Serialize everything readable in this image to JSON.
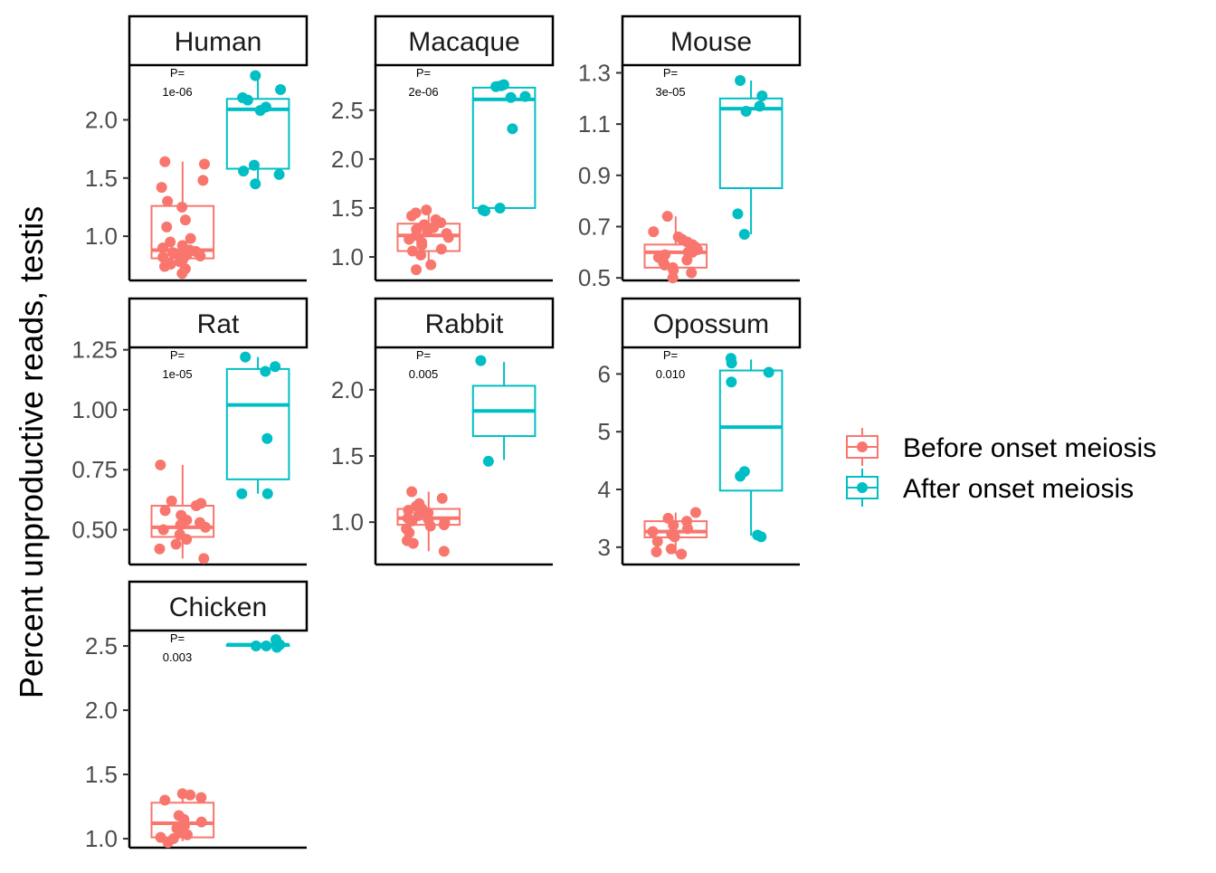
{
  "chart_data": {
    "type": "box",
    "ylabel": "Percent unproductive reads, testis",
    "legend": {
      "position": "right",
      "entries": [
        {
          "label": "Before onset meiosis",
          "color": "#F8766D"
        },
        {
          "label": "After onset meiosis",
          "color": "#00BFC4"
        }
      ]
    },
    "panels": [
      {
        "title": "Human",
        "pvalue": "1e-06",
        "ylim": [
          0.62,
          2.47
        ],
        "yticks": [
          {
            "v": 1.0,
            "label": "1.0"
          },
          {
            "v": 1.5,
            "label": "1.5"
          },
          {
            "v": 2.0,
            "label": "2.0"
          }
        ],
        "groups": [
          {
            "group": "Before onset meiosis",
            "box": {
              "whisker_low": 0.68,
              "q1": 0.81,
              "median": 0.88,
              "q3": 1.26,
              "whisker_high": 1.64
            },
            "points": [
              0.68,
              0.72,
              0.74,
              0.76,
              0.78,
              0.8,
              0.82,
              0.83,
              0.84,
              0.85,
              0.86,
              0.87,
              0.88,
              0.9,
              0.92,
              0.95,
              0.98,
              1.08,
              1.14,
              1.25,
              1.3,
              1.42,
              1.48,
              1.62,
              1.64
            ]
          },
          {
            "group": "After onset meiosis",
            "box": {
              "whisker_low": 1.45,
              "q1": 1.58,
              "median": 2.09,
              "q3": 2.18,
              "whisker_high": 2.38
            },
            "points": [
              1.45,
              1.53,
              1.56,
              1.61,
              2.08,
              2.11,
              2.17,
              2.19,
              2.26,
              2.38
            ]
          }
        ]
      },
      {
        "title": "Macaque",
        "pvalue": "2e-06",
        "ylim": [
          0.76,
          2.96
        ],
        "yticks": [
          {
            "v": 1.0,
            "label": "1.0"
          },
          {
            "v": 1.5,
            "label": "1.5"
          },
          {
            "v": 2.0,
            "label": "2.0"
          },
          {
            "v": 2.5,
            "label": "2.5"
          }
        ],
        "groups": [
          {
            "group": "Before onset meiosis",
            "box": {
              "whisker_low": 0.87,
              "q1": 1.06,
              "median": 1.22,
              "q3": 1.34,
              "whisker_high": 1.48
            },
            "points": [
              0.87,
              0.92,
              1.02,
              1.06,
              1.08,
              1.12,
              1.15,
              1.18,
              1.2,
              1.22,
              1.24,
              1.26,
              1.28,
              1.3,
              1.33,
              1.35,
              1.38,
              1.42,
              1.45,
              1.48
            ]
          },
          {
            "group": "After onset meiosis",
            "box": {
              "whisker_low": 1.48,
              "q1": 1.5,
              "median": 2.61,
              "q3": 2.73,
              "whisker_high": 2.76
            },
            "points": [
              1.47,
              1.48,
              1.5,
              2.31,
              2.63,
              2.64,
              2.74,
              2.75,
              2.76
            ]
          }
        ]
      },
      {
        "title": "Mouse",
        "pvalue": "3e-05",
        "ylim": [
          0.49,
          1.33
        ],
        "yticks": [
          {
            "v": 0.5,
            "label": "0.5"
          },
          {
            "v": 0.7,
            "label": "0.7"
          },
          {
            "v": 0.9,
            "label": "0.9"
          },
          {
            "v": 1.1,
            "label": "1.1"
          },
          {
            "v": 1.3,
            "label": "1.3"
          }
        ],
        "groups": [
          {
            "group": "Before onset meiosis",
            "box": {
              "whisker_low": 0.5,
              "q1": 0.54,
              "median": 0.6,
              "q3": 0.63,
              "whisker_high": 0.74
            },
            "points": [
              0.5,
              0.52,
              0.53,
              0.54,
              0.55,
              0.56,
              0.57,
              0.58,
              0.59,
              0.6,
              0.6,
              0.61,
              0.62,
              0.63,
              0.64,
              0.65,
              0.66,
              0.68,
              0.74
            ]
          },
          {
            "group": "After onset meiosis",
            "box": {
              "whisker_low": 0.67,
              "q1": 0.85,
              "median": 1.16,
              "q3": 1.2,
              "whisker_high": 1.27
            },
            "points": [
              0.67,
              0.75,
              1.15,
              1.17,
              1.21,
              1.27
            ]
          }
        ]
      },
      {
        "title": "Rat",
        "pvalue": "1e-05",
        "ylim": [
          0.355,
          1.26
        ],
        "yticks": [
          {
            "v": 0.5,
            "label": "0.50"
          },
          {
            "v": 0.75,
            "label": "0.75"
          },
          {
            "v": 1.0,
            "label": "1.00"
          },
          {
            "v": 1.25,
            "label": "1.25"
          }
        ],
        "groups": [
          {
            "group": "Before onset meiosis",
            "box": {
              "whisker_low": 0.38,
              "q1": 0.47,
              "median": 0.51,
              "q3": 0.6,
              "whisker_high": 0.77
            },
            "points": [
              0.38,
              0.42,
              0.44,
              0.46,
              0.48,
              0.5,
              0.51,
              0.52,
              0.53,
              0.54,
              0.56,
              0.58,
              0.6,
              0.61,
              0.62,
              0.77
            ]
          },
          {
            "group": "After onset meiosis",
            "box": {
              "whisker_low": 0.65,
              "q1": 0.71,
              "median": 1.02,
              "q3": 1.17,
              "whisker_high": 1.22
            },
            "points": [
              0.65,
              0.65,
              0.88,
              1.16,
              1.18,
              1.22
            ]
          }
        ]
      },
      {
        "title": "Rabbit",
        "pvalue": "0.005",
        "ylim": [
          0.68,
          2.32
        ],
        "yticks": [
          {
            "v": 1.0,
            "label": "1.0"
          },
          {
            "v": 1.5,
            "label": "1.5"
          },
          {
            "v": 2.0,
            "label": "2.0"
          }
        ],
        "groups": [
          {
            "group": "Before onset meiosis",
            "box": {
              "whisker_low": 0.78,
              "q1": 0.98,
              "median": 1.03,
              "q3": 1.1,
              "whisker_high": 1.23
            },
            "points": [
              0.78,
              0.84,
              0.86,
              0.92,
              0.95,
              0.97,
              0.98,
              1.0,
              1.01,
              1.02,
              1.03,
              1.05,
              1.07,
              1.09,
              1.1,
              1.12,
              1.14,
              1.18,
              1.23
            ]
          },
          {
            "group": "After onset meiosis",
            "box": {
              "whisker_low": 1.47,
              "q1": 1.65,
              "median": 1.84,
              "q3": 2.03,
              "whisker_high": 2.21
            },
            "points": [
              1.46,
              2.22
            ]
          }
        ]
      },
      {
        "title": "Opossum",
        "pvalue": "0.010",
        "ylim": [
          2.7,
          6.46
        ],
        "yticks": [
          {
            "v": 3,
            "label": "3"
          },
          {
            "v": 4,
            "label": "4"
          },
          {
            "v": 5,
            "label": "5"
          },
          {
            "v": 6,
            "label": "6"
          }
        ],
        "groups": [
          {
            "group": "Before onset meiosis",
            "box": {
              "whisker_low": 2.88,
              "q1": 3.17,
              "median": 3.27,
              "q3": 3.45,
              "whisker_high": 3.6
            },
            "points": [
              2.88,
              2.92,
              2.97,
              3.1,
              3.18,
              3.22,
              3.27,
              3.32,
              3.38,
              3.45,
              3.5,
              3.6
            ]
          },
          {
            "group": "After onset meiosis",
            "box": {
              "whisker_low": 3.2,
              "q1": 3.98,
              "median": 5.08,
              "q3": 6.06,
              "whisker_high": 6.25
            },
            "points": [
              3.18,
              3.21,
              4.23,
              4.31,
              5.86,
              6.03,
              6.19,
              6.27
            ]
          }
        ]
      },
      {
        "title": "Chicken",
        "pvalue": "0.003",
        "ylim": [
          0.93,
          2.62
        ],
        "yticks": [
          {
            "v": 1.0,
            "label": "1.0"
          },
          {
            "v": 1.5,
            "label": "1.5"
          },
          {
            "v": 2.0,
            "label": "2.0"
          },
          {
            "v": 2.5,
            "label": "2.5"
          }
        ],
        "groups": [
          {
            "group": "Before onset meiosis",
            "box": {
              "whisker_low": 0.98,
              "q1": 1.01,
              "median": 1.12,
              "q3": 1.28,
              "whisker_high": 1.35
            },
            "points": [
              0.97,
              1.0,
              1.01,
              1.03,
              1.05,
              1.08,
              1.1,
              1.13,
              1.15,
              1.18,
              1.3,
              1.32,
              1.34,
              1.35
            ]
          },
          {
            "group": "After onset meiosis",
            "box": {
              "whisker_low": 2.5,
              "q1": 2.5,
              "median": 2.51,
              "q3": 2.51,
              "whisker_high": 2.52
            },
            "points": [
              2.49,
              2.5,
              2.5,
              2.51,
              2.55
            ]
          }
        ]
      }
    ]
  }
}
